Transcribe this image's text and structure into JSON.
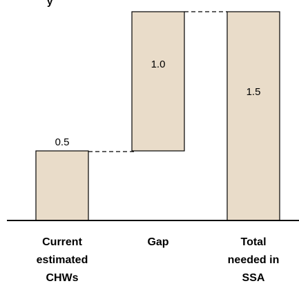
{
  "top_text_fragment": "y",
  "chart_data": {
    "type": "bar",
    "subtype": "waterfall",
    "categories": [
      [
        "Current",
        "estimated",
        "CHWs"
      ],
      [
        "Gap"
      ],
      [
        "Total",
        "needed in",
        "SSA"
      ]
    ],
    "values": [
      0.5,
      1.0,
      1.5
    ],
    "bases": [
      0,
      0.5,
      0
    ],
    "data_labels": [
      "0.5",
      "1.0",
      "1.5"
    ],
    "colors": {
      "bar_fill": "#e9dcc9",
      "bar_stroke": "#000000"
    },
    "ylim": [
      0,
      1.5
    ],
    "grid": false,
    "legend": "none"
  }
}
